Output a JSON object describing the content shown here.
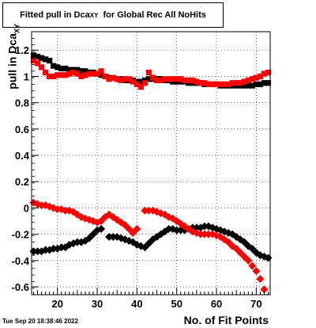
{
  "title": {
    "prefix": "Fitted pull in Dca",
    "sub": "XY",
    "suffix": "  for Global Rec All NoHits"
  },
  "timestamp": "Tue Sep 20 18:38:46 2022",
  "chart_data": {
    "type": "scatter",
    "xlabel": "No. of Fit Points",
    "ylabel": {
      "main": "pull in Dca",
      "sub": "XY"
    },
    "xlim": [
      13.5,
      73.5
    ],
    "ylim": [
      -0.66,
      1.34
    ],
    "x_ticks": [
      20,
      30,
      40,
      50,
      60,
      70
    ],
    "y_ticks": [
      -0.6,
      -0.4,
      -0.2,
      0,
      0.2,
      0.4,
      0.6,
      0.8,
      1,
      1.2
    ],
    "grid": true,
    "series": [
      {
        "color": "#000000",
        "marker": "square",
        "x": [
          14,
          15,
          16,
          17,
          18,
          19,
          20,
          21,
          22,
          23,
          24,
          25,
          26,
          27,
          28,
          29,
          30,
          31,
          32,
          33,
          34,
          35,
          36,
          37,
          38,
          39,
          40,
          41,
          42,
          43,
          44,
          45,
          46,
          47,
          48,
          49,
          50,
          51,
          52,
          53,
          54,
          55,
          56,
          57,
          58,
          59,
          60,
          61,
          62,
          63,
          64,
          65,
          66,
          67,
          68,
          69,
          70,
          71,
          72,
          73
        ],
        "y": [
          1.16,
          1.15,
          1.14,
          1.13,
          1.12,
          1.08,
          1.07,
          1.06,
          1.06,
          1.05,
          1.05,
          1.05,
          1.04,
          1.04,
          1.03,
          1.03,
          1.02,
          1.01,
          1.0,
          0.99,
          0.99,
          0.98,
          0.98,
          0.97,
          0.97,
          0.97,
          0.96,
          0.96,
          0.97,
          0.98,
          0.98,
          0.98,
          0.98,
          0.97,
          0.97,
          0.96,
          0.96,
          0.96,
          0.96,
          0.95,
          0.95,
          0.95,
          0.95,
          0.94,
          0.94,
          0.94,
          0.94,
          0.93,
          0.93,
          0.93,
          0.93,
          0.93,
          0.93,
          0.93,
          0.93,
          0.93,
          0.94,
          0.94,
          0.95,
          0.95
        ]
      },
      {
        "color": "#ff0000",
        "marker": "square",
        "x": [
          14,
          15,
          16,
          17,
          18,
          19,
          20,
          21,
          22,
          23,
          24,
          25,
          26,
          27,
          28,
          29,
          30,
          31,
          32,
          33,
          34,
          35,
          36,
          37,
          38,
          39,
          40,
          41,
          42,
          43,
          44,
          45,
          46,
          47,
          48,
          49,
          50,
          51,
          52,
          53,
          54,
          55,
          56,
          57,
          58,
          59,
          60,
          61,
          62,
          63,
          64,
          65,
          66,
          67,
          68,
          69,
          70,
          71,
          72,
          73
        ],
        "y": [
          1.12,
          1.1,
          1.07,
          1.03,
          1.0,
          1.0,
          1.01,
          1.01,
          1.01,
          1.02,
          1.03,
          1.02,
          1.0,
          1.01,
          1.02,
          1.02,
          1.02,
          1.04,
          1.0,
          0.98,
          0.99,
          0.98,
          0.97,
          0.98,
          0.98,
          0.96,
          0.94,
          0.92,
          0.95,
          1.03,
          0.99,
          0.97,
          0.97,
          0.98,
          0.98,
          0.98,
          0.98,
          0.98,
          0.97,
          0.97,
          0.97,
          0.96,
          0.95,
          0.95,
          0.94,
          0.94,
          0.94,
          0.94,
          0.94,
          0.94,
          0.95,
          0.95,
          0.95,
          0.96,
          0.97,
          0.98,
          0.99,
          1.0,
          1.02,
          1.03
        ]
      },
      {
        "color": "#000000",
        "marker": "diamond",
        "x": [
          14,
          15,
          16,
          17,
          18,
          19,
          20,
          21,
          22,
          23,
          24,
          25,
          26,
          27,
          28,
          29,
          30,
          31,
          33,
          34,
          35,
          36,
          37,
          38,
          39,
          40,
          41,
          42,
          43,
          44,
          45,
          46,
          47,
          48,
          49,
          50,
          51,
          52,
          53,
          54,
          55,
          56,
          57,
          58,
          59,
          60,
          61,
          62,
          63,
          64,
          65,
          66,
          67,
          68,
          69,
          70,
          71,
          72,
          73
        ],
        "y": [
          -0.33,
          -0.33,
          -0.33,
          -0.32,
          -0.32,
          -0.31,
          -0.31,
          -0.3,
          -0.3,
          -0.28,
          -0.27,
          -0.26,
          -0.26,
          -0.25,
          -0.23,
          -0.2,
          -0.17,
          -0.16,
          -0.22,
          -0.22,
          -0.22,
          -0.23,
          -0.24,
          -0.25,
          -0.26,
          -0.28,
          -0.29,
          -0.3,
          -0.27,
          -0.24,
          -0.22,
          -0.2,
          -0.18,
          -0.16,
          -0.16,
          -0.17,
          -0.17,
          -0.17,
          -0.16,
          -0.15,
          -0.15,
          -0.15,
          -0.14,
          -0.14,
          -0.15,
          -0.16,
          -0.17,
          -0.18,
          -0.19,
          -0.2,
          -0.22,
          -0.24,
          -0.26,
          -0.29,
          -0.31,
          -0.34,
          -0.36,
          -0.37,
          -0.38
        ]
      },
      {
        "color": "#ff0000",
        "marker": "diamond",
        "x": [
          14,
          15,
          16,
          17,
          18,
          19,
          20,
          21,
          22,
          23,
          24,
          25,
          26,
          27,
          28,
          29,
          30,
          31,
          32,
          33,
          34,
          35,
          36,
          37,
          38,
          39,
          40,
          42,
          43,
          44,
          45,
          46,
          47,
          48,
          49,
          50,
          51,
          52,
          53,
          54,
          55,
          56,
          57,
          58,
          59,
          60,
          61,
          62,
          63,
          64,
          65,
          66,
          67,
          68,
          69,
          70,
          71,
          72
        ],
        "y": [
          0.04,
          0.03,
          0.02,
          0.02,
          0.01,
          0.0,
          -0.01,
          -0.01,
          -0.02,
          -0.02,
          -0.03,
          -0.05,
          -0.07,
          -0.08,
          -0.09,
          -0.1,
          -0.11,
          -0.1,
          -0.07,
          -0.05,
          -0.07,
          -0.09,
          -0.11,
          -0.13,
          -0.16,
          -0.19,
          -0.16,
          -0.02,
          -0.02,
          -0.02,
          -0.03,
          -0.04,
          -0.05,
          -0.07,
          -0.08,
          -0.1,
          -0.12,
          -0.14,
          -0.16,
          -0.18,
          -0.19,
          -0.2,
          -0.2,
          -0.2,
          -0.2,
          -0.21,
          -0.22,
          -0.24,
          -0.26,
          -0.29,
          -0.31,
          -0.34,
          -0.37,
          -0.4,
          -0.44,
          -0.48,
          -0.54,
          -0.62
        ]
      }
    ]
  }
}
